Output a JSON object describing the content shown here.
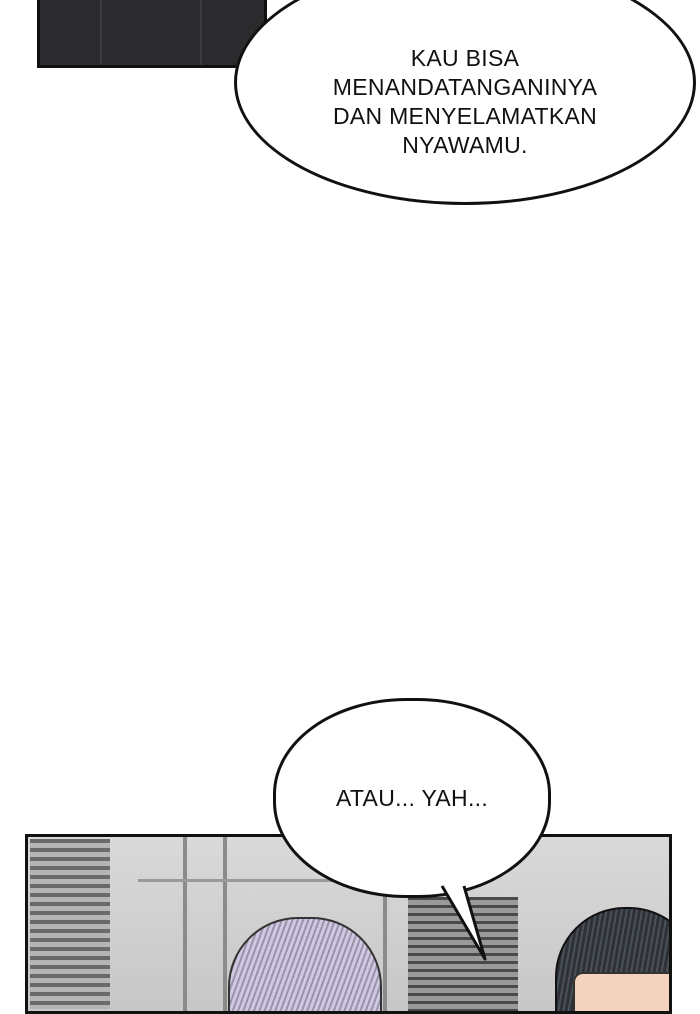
{
  "bubbles": {
    "first": {
      "text": "KAU BISA\nMENANDATANGANINYA\nDAN MENYELAMATKAN\nNYAWAMU."
    },
    "second": {
      "text": "ATAU... YAH..."
    }
  },
  "colors": {
    "ink": "#111111",
    "panel_dark": "#2b2b2e",
    "paper": "#ffffff"
  }
}
